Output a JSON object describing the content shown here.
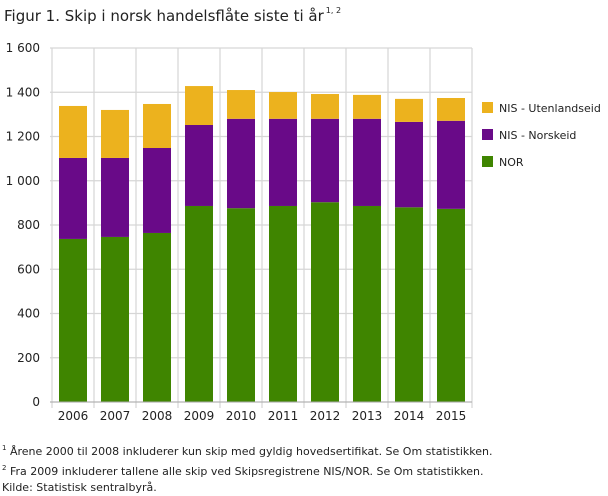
{
  "title": "Figur 1. Skip i norsk handelsflåte siste ti år",
  "title_sup": "1, 2",
  "notes": [
    {
      "sup": "1",
      "text": " Årene 2000 til 2008 inkluderer kun skip med gyldig hovedsertifikat. Se Om statistikken."
    },
    {
      "sup": "2",
      "text": " Fra 2009 inkluderer tallene alle skip ved Skipsregistrene NIS/NOR.  Se Om statistikken."
    },
    {
      "sup": "",
      "text": "Kilde: Statistisk sentralbyrå."
    }
  ],
  "chart_data": {
    "type": "bar",
    "stacked": true,
    "categories": [
      "2006",
      "2007",
      "2008",
      "2009",
      "2010",
      "2011",
      "2012",
      "2013",
      "2014",
      "2015"
    ],
    "series": [
      {
        "name": "NOR",
        "color": "#3f8500",
        "values": [
          737,
          746,
          764,
          886,
          876,
          886,
          903,
          886,
          880,
          873
        ]
      },
      {
        "name": "NIS - Norskeid",
        "color": "#690a88",
        "values": [
          366,
          357,
          384,
          366,
          404,
          394,
          377,
          394,
          386,
          398
        ]
      },
      {
        "name": "NIS - Utenlandseid",
        "color": "#ecb21e",
        "values": [
          235,
          217,
          199,
          176,
          130,
          121,
          112,
          108,
          104,
          103
        ]
      }
    ],
    "ylim": [
      0,
      1600
    ],
    "yticks": [
      0,
      200,
      400,
      600,
      800,
      1000,
      1200,
      1400,
      1600
    ],
    "ytick_labels": [
      "0",
      "200",
      "400",
      "600",
      "800",
      "1 000",
      "1 200",
      "1 400",
      "1 600"
    ],
    "grid": true,
    "legend": "right"
  }
}
